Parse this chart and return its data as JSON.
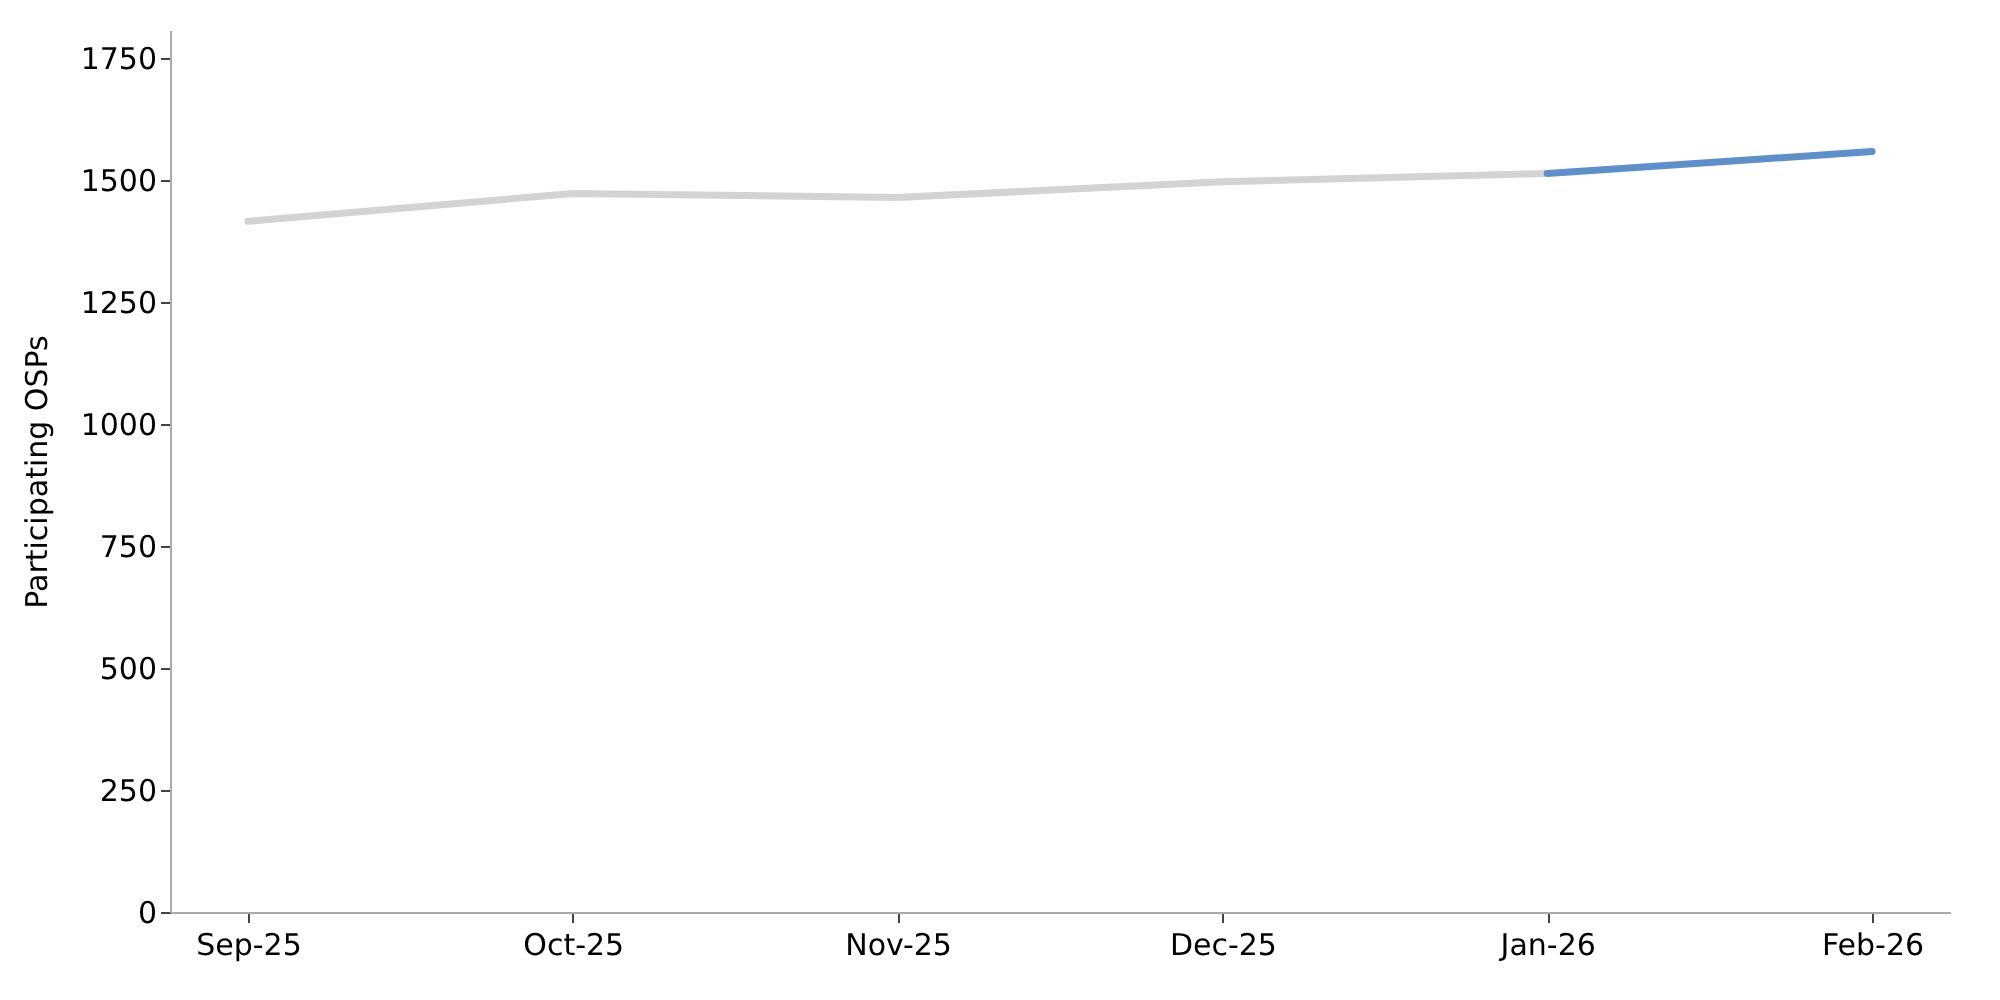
{
  "chart_data": {
    "type": "line",
    "ylabel": "Participating OSPs",
    "categories": [
      "Sep-25",
      "Oct-25",
      "Nov-25",
      "Dec-25",
      "Jan-26",
      "Feb-26"
    ],
    "series": [
      {
        "color": "#d3d3d3",
        "values": [
          1415,
          1472,
          1464,
          1496,
          1513,
          null
        ]
      },
      {
        "color": "#5f8fc9",
        "values": [
          null,
          null,
          null,
          null,
          1513,
          1558
        ]
      }
    ],
    "ylim": [
      0,
      1807
    ],
    "yticks": [
      0,
      250,
      500,
      750,
      1000,
      1250,
      1500,
      1750
    ],
    "grid": false
  }
}
